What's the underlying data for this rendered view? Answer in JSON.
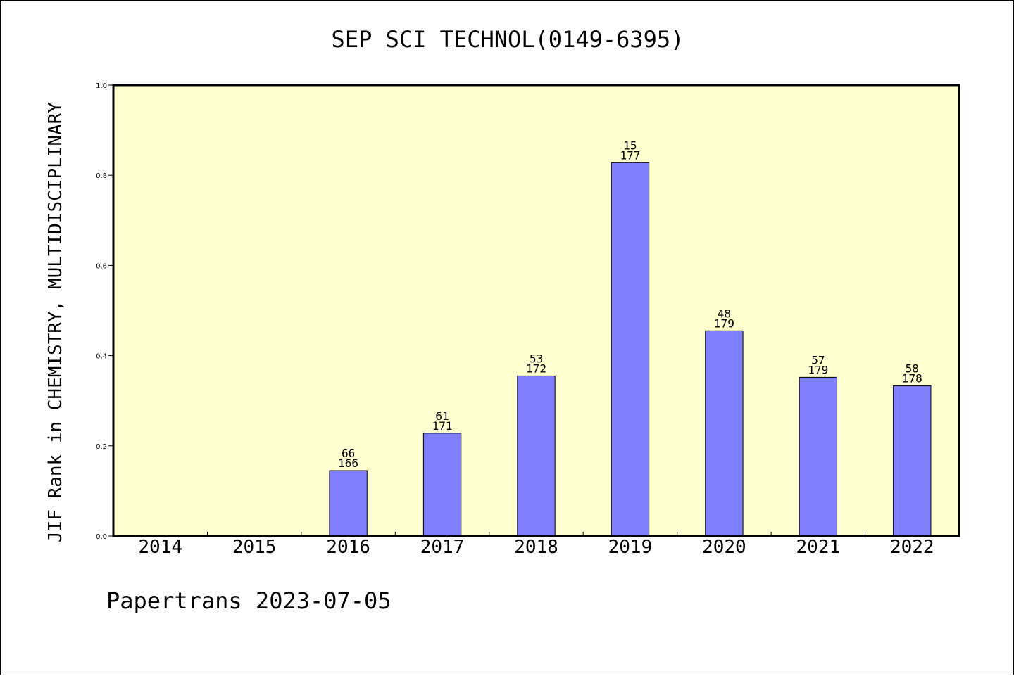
{
  "chart_data": {
    "type": "bar",
    "title": "SEP SCI TECHNOL(0149-6395)",
    "ylabel": "JIF Rank in CHEMISTRY, MULTIDISCIPLINARY",
    "xlabel": "",
    "ylim": [
      0.0,
      1.0
    ],
    "yticks": [
      "0.0",
      "0.2",
      "0.4",
      "0.6",
      "0.8",
      "1.0"
    ],
    "categories": [
      "2014",
      "2015",
      "2016",
      "2017",
      "2018",
      "2019",
      "2020",
      "2021",
      "2022"
    ],
    "values": [
      null,
      null,
      0.145,
      0.228,
      0.355,
      0.828,
      0.455,
      0.352,
      0.333
    ],
    "labels": [
      null,
      null,
      {
        "rank": "66",
        "total": "166"
      },
      {
        "rank": "61",
        "total": "171"
      },
      {
        "rank": "53",
        "total": "172"
      },
      {
        "rank": "15",
        "total": "177"
      },
      {
        "rank": "48",
        "total": "179"
      },
      {
        "rank": "57",
        "total": "179"
      },
      {
        "rank": "58",
        "total": "178"
      }
    ],
    "grid": false,
    "colors": {
      "plot_background": "#ffffd0",
      "bar_fill": "#8080ff",
      "bar_stroke": "#000000"
    }
  },
  "footer": {
    "text": "Papertrans 2023-07-05"
  }
}
